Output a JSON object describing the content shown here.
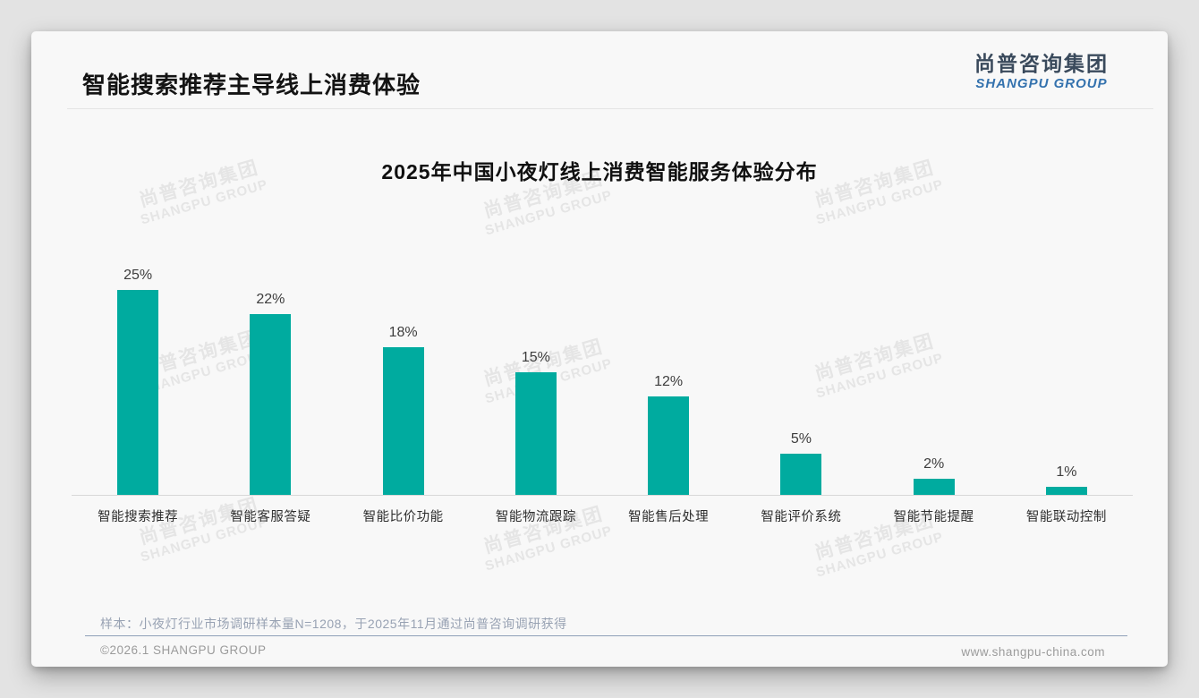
{
  "header": {
    "title": "智能搜索推荐主导线上消费体验",
    "logo_cn": "尚普咨询集团",
    "logo_en": "SHANGPU GROUP"
  },
  "chart_data": {
    "type": "bar",
    "title": "2025年中国小夜灯线上消费智能服务体验分布",
    "categories": [
      "智能搜索推荐",
      "智能客服答疑",
      "智能比价功能",
      "智能物流跟踪",
      "智能售后处理",
      "智能评价系统",
      "智能节能提醒",
      "智能联动控制"
    ],
    "values": [
      25,
      22,
      18,
      15,
      12,
      5,
      2,
      1
    ],
    "value_labels": [
      "25%",
      "22%",
      "18%",
      "15%",
      "12%",
      "5%",
      "2%",
      "1%"
    ],
    "xlabel": "",
    "ylabel": "",
    "ylim": [
      0,
      27
    ],
    "grid": false,
    "legend": false,
    "bar_color": "#00ab9f"
  },
  "footnote": {
    "text": "样本：小夜灯行业市场调研样本量N=1208，于2025年11月通过尚普咨询调研获得"
  },
  "footer": {
    "copyright": "©2026.1 SHANGPU GROUP",
    "website": "www.shangpu-china.com"
  },
  "watermark": {
    "line1": "尚普咨询集团",
    "line2": "SHANGPU GROUP"
  },
  "colors": {
    "accent_teal": "#00ab9f",
    "logo_blue": "#3472ae",
    "logo_dark": "#3a4a5c",
    "note_gray_blue": "#98a2b3"
  }
}
